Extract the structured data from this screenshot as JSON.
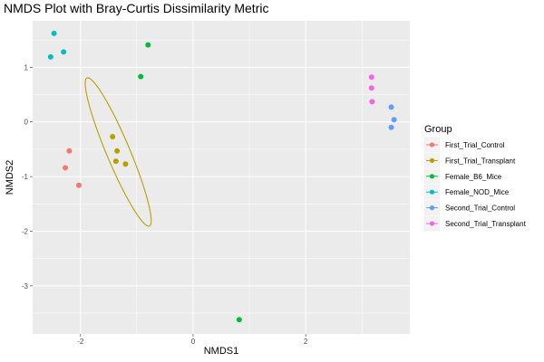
{
  "chart_data": {
    "type": "scatter",
    "title": "NMDS Plot with Bray-Curtis Dissimilarity Metric",
    "xlabel": "NMDS1",
    "ylabel": "NMDS2",
    "xlim": [
      -2.85,
      3.85
    ],
    "ylim": [
      -3.88,
      1.85
    ],
    "x_ticks": [
      -2,
      0,
      2
    ],
    "x_tick_labels": [
      "-2",
      "0",
      "2"
    ],
    "y_ticks": [
      -3,
      -2,
      -1,
      0,
      1
    ],
    "y_tick_labels": [
      "-3",
      "-2",
      "-1",
      "0",
      "1"
    ],
    "grid": true,
    "legend": {
      "title": "Group",
      "position": "right"
    },
    "series": [
      {
        "name": "First_Trial_Control",
        "color": "#F8766D",
        "x": [
          -2.2,
          -2.27,
          -2.03
        ],
        "y": [
          -0.53,
          -0.84,
          -1.16
        ]
      },
      {
        "name": "First_Trial_Transplant",
        "color": "#B79F00",
        "x": [
          -1.43,
          -1.35,
          -1.37,
          -1.2
        ],
        "y": [
          -0.27,
          -0.53,
          -0.72,
          -0.77
        ],
        "ellipse": {
          "center": [
            -1.33,
            -0.55
          ],
          "semi_axes": [
            1.465,
            0.208
          ],
          "orientation_deg": 112.2
        }
      },
      {
        "name": "Female_B6_Mice",
        "color": "#00BA38",
        "x": [
          -0.8,
          -0.93,
          0.82
        ],
        "y": [
          1.41,
          0.83,
          -3.62
        ]
      },
      {
        "name": "Female_NOD_Mice",
        "color": "#00BFC4",
        "x": [
          -2.47,
          -2.3,
          -2.53
        ],
        "y": [
          1.62,
          1.28,
          1.19
        ]
      },
      {
        "name": "Second_Trial_Control",
        "color": "#619CFF",
        "x": [
          3.52,
          3.57,
          3.52
        ],
        "y": [
          0.27,
          0.04,
          -0.1
        ]
      },
      {
        "name": "Second_Trial_Transplant",
        "color": "#F564E3",
        "x": [
          3.17,
          3.17,
          3.18
        ],
        "y": [
          0.82,
          0.62,
          0.37
        ]
      }
    ]
  }
}
